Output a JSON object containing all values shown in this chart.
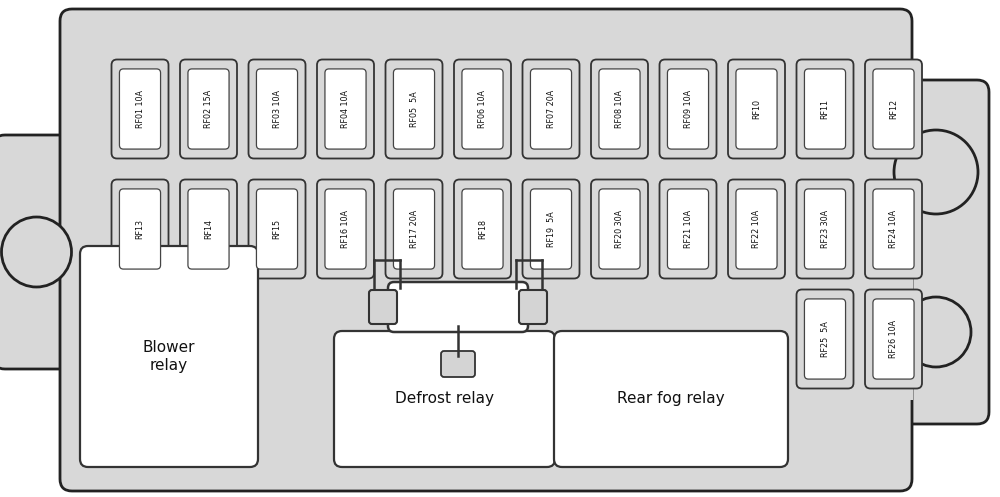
{
  "panel_bg": "#d8d8d8",
  "panel_edge": "#222222",
  "fuse_outer_bg": "#d8d8d8",
  "fuse_inner_bg": "#ffffff",
  "fuse_edge": "#333333",
  "relay_bg": "#ffffff",
  "relay_edge": "#333333",
  "fig_bg": "#ffffff",
  "row1_fuses": [
    "RF01 10A",
    "RF02 15A",
    "RF03 10A",
    "RF04 10A",
    "RF05  5A",
    "RF06 10A",
    "RF07 20A",
    "RF08 10A",
    "RF09 10A",
    "RF10",
    "RF11",
    "RF12"
  ],
  "row2_fuses": [
    "RF13",
    "RF14",
    "RF15",
    "RF16 10A",
    "RF17 20A",
    "RF18",
    "RF19  5A",
    "RF20 30A",
    "RF21 10A",
    "RF22 10A",
    "RF23 30A",
    "RF24 10A"
  ],
  "row3_fuses": [
    {
      "label": "RF25  5A",
      "idx": 10
    },
    {
      "label": "RF26 10A",
      "idx": 11
    }
  ],
  "blower_label": "Blower\nrelay",
  "defrost_label": "Defrost relay",
  "rear_fog_label": "Rear fog relay",
  "text_color": "#111111",
  "fuse_fontsize": 5.8,
  "relay_fontsize": 11.0
}
